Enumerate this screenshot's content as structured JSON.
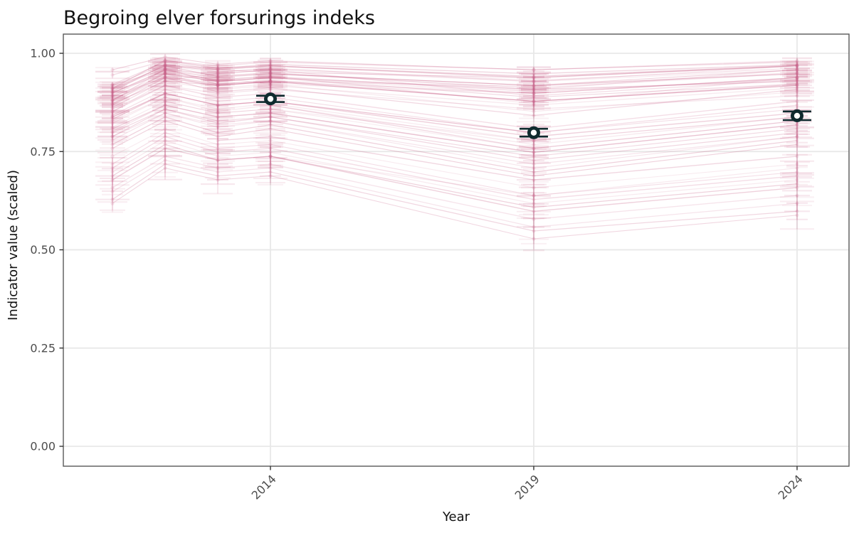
{
  "chart_data": {
    "type": "line",
    "title": "Begroing elver forsurings indeks",
    "xlabel": "Year",
    "ylabel": "Indicator value (scaled)",
    "x_tick_years": [
      2014,
      2019,
      2024
    ],
    "x_tick_labels": [
      "2014",
      "2019",
      "2024"
    ],
    "y_ticks": [
      0.0,
      0.25,
      0.5,
      0.75,
      1.0
    ],
    "y_tick_labels": [
      "0.00",
      "0.25",
      "0.50",
      "0.75",
      "1.00"
    ],
    "ylim": [
      -0.05,
      1.05
    ],
    "xlim_years": [
      2010.07,
      2024.99
    ],
    "observed_years": [
      2011,
      2012,
      2013,
      2014,
      2019,
      2024
    ],
    "grid": true,
    "legend_position": "none",
    "colors": {
      "station_pink": "#c95f87",
      "highlight_dark": "#0f2a2e",
      "highlight_fill": "#ffffff",
      "grid": "#e8e8e8",
      "panel_border": "#595959",
      "tick_mark": "#333333",
      "tick_label": "#4d4d4d",
      "title_text": "#111111",
      "axis_title_text": "#111111",
      "panel_background": "#ffffff"
    },
    "highlight_points": [
      {
        "year": 2014,
        "value": 0.884,
        "err": 0.008
      },
      {
        "year": 2019,
        "value": 0.798,
        "err": 0.01
      },
      {
        "year": 2024,
        "value": 0.841,
        "err": 0.011
      }
    ],
    "stations": [
      {
        "years": [
          2011,
          2012,
          2013,
          2014,
          2019,
          2024
        ],
        "values": [
          0.912,
          0.968,
          0.951,
          0.962,
          0.928,
          0.958
        ],
        "err": 0.01
      },
      {
        "years": [
          2011,
          2012,
          2013,
          2014,
          2019,
          2024
        ],
        "values": [
          0.893,
          0.957,
          0.938,
          0.948,
          0.912,
          0.949
        ],
        "err": 0.009
      },
      {
        "years": [
          2011,
          2012,
          2013,
          2014,
          2019,
          2024
        ],
        "values": [
          0.901,
          0.949,
          0.932,
          0.941,
          0.903,
          0.934
        ],
        "err": 0.012
      },
      {
        "years": [
          2011,
          2012,
          2013,
          2014,
          2019,
          2024
        ],
        "values": [
          0.921,
          0.978,
          0.958,
          0.952,
          0.938,
          0.968
        ],
        "err": 0.008
      },
      {
        "years": [
          2011,
          2012,
          2013,
          2014,
          2019,
          2024
        ],
        "values": [
          0.882,
          0.941,
          0.922,
          0.931,
          0.878,
          0.921
        ],
        "err": 0.011
      },
      {
        "years": [
          2011,
          2012,
          2013,
          2014,
          2019,
          2024
        ],
        "values": [
          0.871,
          0.952,
          0.933,
          0.942,
          0.872,
          0.939
        ],
        "err": 0.013
      },
      {
        "years": [
          2011,
          2012,
          2013,
          2014,
          2019,
          2024
        ],
        "values": [
          0.908,
          0.962,
          0.921,
          0.929,
          0.916,
          0.951
        ],
        "err": 0.009
      },
      {
        "years": [
          2011,
          2012,
          2013,
          2014,
          2019,
          2024
        ],
        "values": [
          0.862,
          0.931,
          0.948,
          0.958,
          0.892,
          0.932
        ],
        "err": 0.012
      },
      {
        "years": [
          2011,
          2012,
          2013,
          2014,
          2019,
          2024
        ],
        "values": [
          0.903,
          0.971,
          0.961,
          0.972,
          0.948,
          0.971
        ],
        "err": 0.008
      },
      {
        "years": [
          2011,
          2012,
          2013,
          2014,
          2019,
          2024
        ],
        "values": [
          0.958,
          0.991,
          0.972,
          0.981,
          0.958,
          0.978
        ],
        "err": 0.007
      },
      {
        "years": [
          2011,
          2012,
          2013,
          2014,
          2019,
          2024
        ],
        "values": [
          0.889,
          0.948,
          0.911,
          0.922,
          0.852,
          0.902
        ],
        "err": 0.014
      },
      {
        "years": [
          2011,
          2012,
          2013,
          2014,
          2019,
          2024
        ],
        "values": [
          0.879,
          0.961,
          0.942,
          0.951,
          0.908,
          0.958
        ],
        "err": 0.01
      },
      {
        "years": [
          2011,
          2012,
          2013,
          2014,
          2019,
          2024
        ],
        "values": [
          0.918,
          0.972,
          0.953,
          0.961,
          0.931,
          0.962
        ],
        "err": 0.009
      },
      {
        "years": [
          2011,
          2012,
          2013,
          2014,
          2019,
          2024
        ],
        "values": [
          0.868,
          0.938,
          0.902,
          0.912,
          0.842,
          0.908
        ],
        "err": 0.013
      },
      {
        "years": [
          2011,
          2012,
          2013,
          2014,
          2019,
          2024
        ],
        "values": [
          0.911,
          0.982,
          0.962,
          0.968,
          0.941,
          0.969
        ],
        "err": 0.008
      },
      {
        "years": [
          2011,
          2012,
          2013,
          2014,
          2019,
          2024
        ],
        "values": [
          0.898,
          0.958,
          0.938,
          0.921,
          0.898,
          0.938
        ],
        "err": 0.011
      },
      {
        "years": [
          2011,
          2012,
          2013,
          2014,
          2019,
          2024
        ],
        "values": [
          0.858,
          0.918,
          0.898,
          0.908,
          0.858,
          0.892
        ],
        "err": 0.014
      },
      {
        "years": [
          2011,
          2012,
          2013,
          2014,
          2019,
          2024
        ],
        "values": [
          0.945,
          0.981,
          0.968,
          0.978,
          0.958,
          0.981
        ],
        "err": 0.007
      },
      {
        "years": [
          2011,
          2012,
          2013,
          2014,
          2019,
          2024
        ],
        "values": [
          0.881,
          0.948,
          0.928,
          0.938,
          0.888,
          0.922
        ],
        "err": 0.012
      },
      {
        "years": [
          2011,
          2012,
          2013,
          2014,
          2019,
          2024
        ],
        "values": [
          0.909,
          0.968,
          0.941,
          0.948,
          0.918,
          0.948
        ],
        "err": 0.01
      },
      {
        "years": [
          2011,
          2012,
          2013,
          2014,
          2019,
          2024
        ],
        "values": [
          0.851,
          0.928,
          0.908,
          0.918,
          0.868,
          0.912
        ],
        "err": 0.013
      },
      {
        "years": [
          2011,
          2012,
          2013,
          2014,
          2019,
          2024
        ],
        "values": [
          0.919,
          0.958,
          0.948,
          0.958,
          0.928,
          0.968
        ],
        "err": 0.009
      },
      {
        "years": [
          2011,
          2012,
          2013,
          2014,
          2019,
          2024
        ],
        "values": [
          0.891,
          0.938,
          0.918,
          0.928,
          0.898,
          0.938
        ],
        "err": 0.011
      },
      {
        "years": [
          2011,
          2012,
          2013,
          2014,
          2019,
          2024
        ],
        "values": [
          0.899,
          0.958,
          0.929,
          0.938,
          0.908,
          0.929
        ],
        "err": 0.01
      },
      {
        "years": [
          2011,
          2012,
          2013,
          2014,
          2019,
          2024
        ],
        "values": [
          0.872,
          0.929,
          0.919,
          0.928,
          0.878,
          0.918
        ],
        "err": 0.012
      },
      {
        "years": [
          2011,
          2012,
          2013,
          2014,
          2019,
          2024
        ],
        "values": [
          0.822,
          0.888,
          0.858,
          0.872,
          0.778,
          0.838
        ],
        "err": 0.015
      },
      {
        "years": [
          2011,
          2012,
          2013,
          2014,
          2019,
          2024
        ],
        "values": [
          0.801,
          0.868,
          0.838,
          0.848,
          0.748,
          0.818
        ],
        "err": 0.017
      },
      {
        "years": [
          2011,
          2012,
          2013,
          2014,
          2019,
          2024
        ],
        "values": [
          0.842,
          0.908,
          0.878,
          0.888,
          0.798,
          0.858
        ],
        "err": 0.014
      },
      {
        "years": [
          2011,
          2012,
          2013,
          2014,
          2019,
          2024
        ],
        "values": [
          0.788,
          0.858,
          0.822,
          0.838,
          0.728,
          0.798
        ],
        "err": 0.018
      },
      {
        "years": [
          2011,
          2012,
          2013,
          2014,
          2019,
          2024
        ],
        "values": [
          0.832,
          0.898,
          0.868,
          0.878,
          0.788,
          0.848
        ],
        "err": 0.015
      },
      {
        "years": [
          2011,
          2012,
          2013,
          2014,
          2019,
          2024
        ],
        "values": [
          0.812,
          0.878,
          0.848,
          0.858,
          0.758,
          0.828
        ],
        "err": 0.016
      },
      {
        "years": [
          2011,
          2012,
          2013,
          2014,
          2019,
          2024
        ],
        "values": [
          0.779,
          0.848,
          0.812,
          0.828,
          0.718,
          0.788
        ],
        "err": 0.019
      },
      {
        "years": [
          2011,
          2012,
          2013,
          2014,
          2019,
          2024
        ],
        "values": [
          0.852,
          0.918,
          0.888,
          0.898,
          0.808,
          0.878
        ],
        "err": 0.014
      },
      {
        "years": [
          2011,
          2012,
          2013,
          2014,
          2019,
          2024
        ],
        "values": [
          0.798,
          0.858,
          0.828,
          0.838,
          0.738,
          0.808
        ],
        "err": 0.017
      },
      {
        "years": [
          2011,
          2012,
          2013,
          2014,
          2019,
          2024
        ],
        "values": [
          0.768,
          0.838,
          0.798,
          0.818,
          0.698,
          0.778
        ],
        "err": 0.02
      },
      {
        "years": [
          2011,
          2012,
          2013,
          2014,
          2019,
          2024
        ],
        "values": [
          0.828,
          0.888,
          0.852,
          0.868,
          0.768,
          0.838
        ],
        "err": 0.015
      },
      {
        "years": [
          2011,
          2012,
          2013,
          2014,
          2019,
          2024
        ],
        "values": [
          0.789,
          0.848,
          0.818,
          0.828,
          0.708,
          0.788
        ],
        "err": 0.018
      },
      {
        "years": [
          2011,
          2012,
          2013,
          2014,
          2019,
          2024
        ],
        "values": [
          0.838,
          0.898,
          0.868,
          0.878,
          0.798,
          0.868
        ],
        "err": 0.014
      },
      {
        "years": [
          2011,
          2012,
          2013,
          2014,
          2019,
          2024
        ],
        "values": [
          0.808,
          0.868,
          0.838,
          0.848,
          0.748,
          0.818
        ],
        "err": 0.016
      },
      {
        "years": [
          2011,
          2012,
          2013,
          2014,
          2019,
          2024
        ],
        "values": [
          0.758,
          0.828,
          0.788,
          0.808,
          0.688,
          0.768
        ],
        "err": 0.021
      },
      {
        "years": [
          2011,
          2012,
          2013,
          2014,
          2019,
          2024
        ],
        "values": [
          0.698,
          0.778,
          0.738,
          0.748,
          0.618,
          0.678
        ],
        "err": 0.022
      },
      {
        "years": [
          2011,
          2012,
          2013,
          2014,
          2019,
          2024
        ],
        "values": [
          0.658,
          0.738,
          0.708,
          0.718,
          0.578,
          0.638
        ],
        "err": 0.024
      },
      {
        "years": [
          2011,
          2012,
          2013,
          2014,
          2019,
          2024
        ],
        "values": [
          0.718,
          0.798,
          0.758,
          0.768,
          0.638,
          0.698
        ],
        "err": 0.02
      },
      {
        "years": [
          2011,
          2012,
          2013,
          2014,
          2019,
          2024
        ],
        "values": [
          0.628,
          0.718,
          0.688,
          0.698,
          0.548,
          0.598
        ],
        "err": 0.026
      },
      {
        "years": [
          2011,
          2012,
          2013,
          2014,
          2019,
          2024
        ],
        "values": [
          0.678,
          0.758,
          0.728,
          0.738,
          0.598,
          0.658
        ],
        "err": 0.023
      },
      {
        "years": [
          2011,
          2012,
          2013,
          2014,
          2019,
          2024
        ],
        "values": [
          0.738,
          0.808,
          0.768,
          0.778,
          0.658,
          0.718
        ],
        "err": 0.019
      },
      {
        "years": [
          2011,
          2012,
          2013,
          2014,
          2019,
          2024
        ],
        "values": [
          0.648,
          0.728,
          0.698,
          0.708,
          0.558,
          0.618
        ],
        "err": 0.025
      },
      {
        "years": [
          2011,
          2012,
          2013,
          2014,
          2019,
          2024
        ],
        "values": [
          0.708,
          0.788,
          0.748,
          0.758,
          0.628,
          0.688
        ],
        "err": 0.021
      },
      {
        "years": [
          2011,
          2012,
          2013,
          2014,
          2019,
          2024
        ],
        "values": [
          0.618,
          0.708,
          0.678,
          0.688,
          0.528,
          0.588
        ],
        "err": 0.028
      },
      {
        "years": [
          2011,
          2012,
          2013,
          2014,
          2019,
          2024
        ],
        "values": [
          0.688,
          0.768,
          0.728,
          0.738,
          0.608,
          0.668
        ],
        "err": 0.022
      },
      {
        "years": [
          2012,
          2013,
          2014,
          2019,
          2024
        ],
        "values": [
          0.948,
          0.928,
          0.938,
          0.898,
          0.938
        ],
        "err": 0.011
      },
      {
        "years": [
          2012,
          2013,
          2014,
          2019,
          2024
        ],
        "values": [
          0.878,
          0.848,
          0.858,
          0.778,
          0.838
        ],
        "err": 0.016
      },
      {
        "years": [
          2013,
          2014,
          2019,
          2024
        ],
        "values": [
          0.918,
          0.928,
          0.878,
          0.918
        ],
        "err": 0.012
      },
      {
        "years": [
          2013,
          2014,
          2019,
          2024
        ],
        "values": [
          0.778,
          0.788,
          0.678,
          0.738
        ],
        "err": 0.019
      },
      {
        "years": [
          2014,
          2019,
          2024
        ],
        "values": [
          0.948,
          0.918,
          0.958
        ],
        "err": 0.01
      },
      {
        "years": [
          2014,
          2019,
          2024
        ],
        "values": [
          0.738,
          0.638,
          0.708
        ],
        "err": 0.022
      },
      {
        "years": [
          2011,
          2012,
          2013,
          2014
        ],
        "values": [
          0.878,
          0.938,
          0.918,
          0.928
        ],
        "err": 0.012
      },
      {
        "years": [
          2011,
          2012,
          2013,
          2014,
          2019
        ],
        "values": [
          0.838,
          0.898,
          0.868,
          0.878,
          0.798
        ],
        "err": 0.015
      },
      {
        "years": [
          2014,
          2019,
          2024
        ],
        "values": [
          0.868,
          0.758,
          0.828
        ],
        "err": 0.016
      },
      {
        "years": [
          2012,
          2013,
          2014,
          2019,
          2024
        ],
        "values": [
          0.968,
          0.958,
          0.968,
          0.938,
          0.968
        ],
        "err": 0.008
      }
    ]
  }
}
